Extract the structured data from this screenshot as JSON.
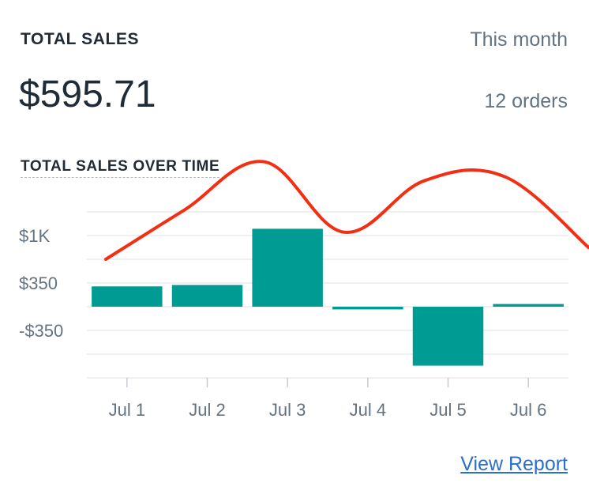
{
  "card": {
    "title": "TOTAL SALES",
    "period": "This month",
    "total": "$595.71",
    "orders": "12 orders",
    "view_report": "View Report"
  },
  "colors": {
    "bar": "#009c94",
    "line": "#f22f12",
    "grid": "#e3e5e8",
    "link": "#2c6ecb"
  },
  "chart_data": {
    "type": "bar",
    "title": "TOTAL SALES OVER TIME",
    "categories": [
      "Jul 1",
      "Jul 2",
      "Jul 3",
      "Jul 4",
      "Jul 5",
      "Jul 6"
    ],
    "y_tick_labels": [
      "$1K",
      "$350",
      "-$350"
    ],
    "y_ticks": [
      1050,
      350,
      -350
    ],
    "ylim": [
      -1050,
      1750
    ],
    "grid": true,
    "series": [
      {
        "type": "bar",
        "values": [
          300,
          320,
          1150,
          -40,
          -870,
          40
        ]
      },
      {
        "type": "line",
        "values": [
          1040,
          1420,
          2140,
          1100,
          1860,
          1920
        ]
      }
    ]
  }
}
